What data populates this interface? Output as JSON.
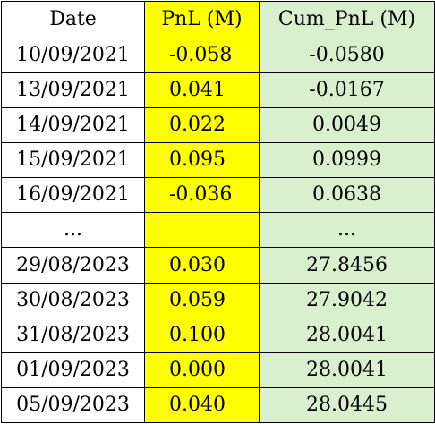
{
  "table": {
    "headers": {
      "date": "Date",
      "pnl": "PnL (M)",
      "cum_pnl": "Cum_PnL (M)"
    },
    "rows": [
      {
        "date": "10/09/2021",
        "pnl": "-0.058",
        "cum_pnl": "-0.0580"
      },
      {
        "date": "13/09/2021",
        "pnl": "0.041",
        "cum_pnl": "-0.0167"
      },
      {
        "date": "14/09/2021",
        "pnl": "0.022",
        "cum_pnl": "0.0049"
      },
      {
        "date": "15/09/2021",
        "pnl": "0.095",
        "cum_pnl": "0.0999"
      },
      {
        "date": "16/09/2021",
        "pnl": "-0.036",
        "cum_pnl": "0.0638"
      },
      {
        "date": "...",
        "pnl": "",
        "cum_pnl": "..."
      },
      {
        "date": "29/08/2023",
        "pnl": "0.030",
        "cum_pnl": "27.8456"
      },
      {
        "date": "30/08/2023",
        "pnl": "0.059",
        "cum_pnl": "27.9042"
      },
      {
        "date": "31/08/2023",
        "pnl": "0.100",
        "cum_pnl": "28.0041"
      },
      {
        "date": "01/09/2023",
        "pnl": "0.000",
        "cum_pnl": "28.0041"
      },
      {
        "date": "05/09/2023",
        "pnl": "0.040",
        "cum_pnl": "28.0445"
      }
    ]
  },
  "colors": {
    "pnl_column": "#ffff00",
    "cum_pnl_column": "#d9f0cf",
    "border": "#000000"
  }
}
